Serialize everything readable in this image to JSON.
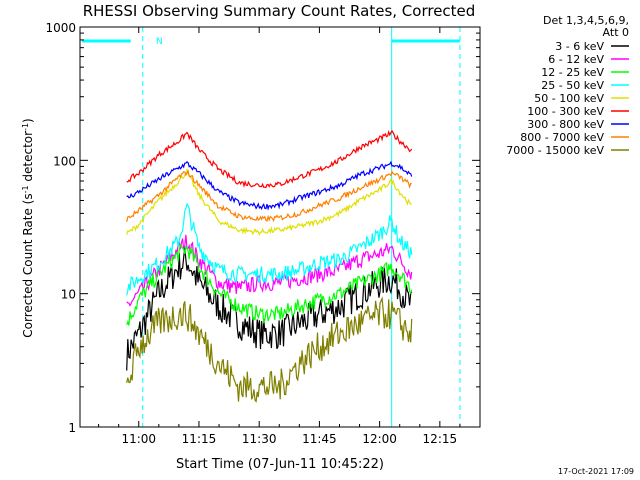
{
  "chart_data": {
    "type": "line",
    "title": "RHESSI Observing Summary Count Rates, Corrected",
    "xlabel": "Start Time (07-Jun-11 10:45:22)",
    "ylabel_main": "Corrected Count Rate (s",
    "ylabel_sup1": "-1",
    "ylabel_mid": " detector",
    "ylabel_sup2": "-1",
    "ylabel_end": ")",
    "y_scale": "log",
    "ylim": [
      1,
      1000
    ],
    "x_ticks": [
      "11:00",
      "11:15",
      "11:30",
      "11:45",
      "12:00",
      "12:15"
    ],
    "y_ticks": [
      "1",
      "10",
      "100",
      "1000"
    ],
    "legend_header": [
      "Det 1,3,4,5,6,9,",
      "Att 0"
    ],
    "x": [
      "10:57",
      "11:00",
      "11:05",
      "11:10",
      "11:12",
      "11:15",
      "11:20",
      "11:25",
      "11:30",
      "11:35",
      "11:40",
      "11:45",
      "11:50",
      "11:55",
      "12:00",
      "12:03",
      "12:05",
      "12:08"
    ],
    "series": [
      {
        "name": "3 - 6 keV",
        "color": "#000000",
        "values": [
          3.5,
          5,
          10,
          16,
          18,
          12,
          8,
          6,
          5,
          5,
          6,
          7,
          8,
          10,
          12,
          13,
          11,
          8
        ]
      },
      {
        "name": "6 - 12 keV",
        "color": "#ff00ff",
        "values": [
          8,
          10,
          15,
          22,
          25,
          18,
          12,
          11,
          12,
          12,
          13,
          14,
          15,
          18,
          20,
          22,
          18,
          14
        ]
      },
      {
        "name": "12 - 25 keV",
        "color": "#00ff00",
        "values": [
          6,
          9,
          14,
          20,
          22,
          16,
          10,
          8,
          7,
          7,
          8,
          9,
          10,
          12,
          14,
          16,
          14,
          11
        ]
      },
      {
        "name": "25 - 50 keV",
        "color": "#00ffff",
        "values": [
          11,
          13,
          17,
          25,
          45,
          22,
          15,
          14,
          14,
          14,
          15,
          17,
          18,
          22,
          28,
          35,
          25,
          20
        ]
      },
      {
        "name": "50 - 100 keV",
        "color": "#e0e000",
        "values": [
          28,
          33,
          50,
          70,
          82,
          55,
          35,
          30,
          29,
          30,
          32,
          35,
          40,
          50,
          60,
          70,
          58,
          45
        ]
      },
      {
        "name": "100 - 300 keV",
        "color": "#ff0000",
        "values": [
          70,
          80,
          110,
          140,
          160,
          120,
          85,
          68,
          65,
          66,
          75,
          85,
          100,
          125,
          145,
          160,
          140,
          118
        ]
      },
      {
        "name": "300 - 800 keV",
        "color": "#0000ff",
        "values": [
          52,
          58,
          72,
          88,
          95,
          80,
          58,
          48,
          45,
          46,
          52,
          58,
          65,
          78,
          88,
          95,
          90,
          76
        ]
      },
      {
        "name": "800 - 7000 keV",
        "color": "#ff8000",
        "values": [
          36,
          42,
          55,
          75,
          82,
          65,
          45,
          38,
          36,
          37,
          40,
          46,
          52,
          62,
          72,
          80,
          75,
          64
        ]
      },
      {
        "name": "7000 - 15000 keV",
        "color": "#808000",
        "values": [
          2,
          4,
          6,
          7,
          7,
          5,
          3,
          2,
          2,
          2,
          3,
          4,
          5,
          6,
          7,
          7,
          6,
          5
        ]
      }
    ],
    "annotations": {
      "night_marker": "N",
      "footer_timestamp": "17-Oct-2021 17:09"
    }
  }
}
